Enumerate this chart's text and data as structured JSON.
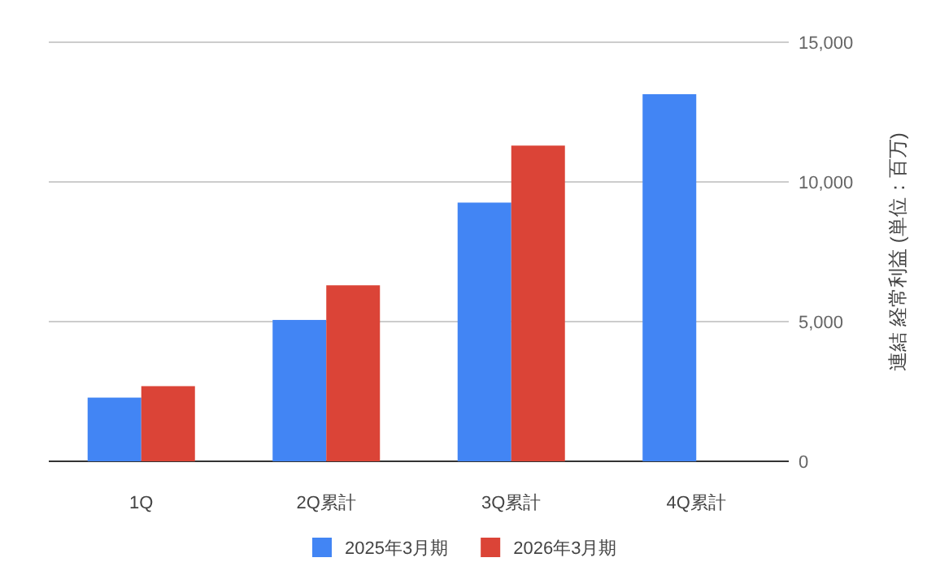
{
  "chart_data": {
    "type": "bar",
    "categories": [
      "1Q",
      "2Q累計",
      "3Q累計",
      "4Q累計"
    ],
    "series": [
      {
        "name": "2025年3月期",
        "color": "#4285f4",
        "values": [
          2280,
          5060,
          9260,
          13140
        ]
      },
      {
        "name": "2026年3月期",
        "color": "#db4437",
        "values": [
          2690,
          6300,
          11300,
          null
        ]
      }
    ],
    "ylabel": "連結 経常利益 (単位：百万)",
    "ylim": [
      0,
      15000
    ],
    "yticks": [
      0,
      {
        "value": 5000,
        "label": "5,000"
      },
      {
        "value": 10000,
        "label": "10,000"
      },
      {
        "value": 15000,
        "label": "15,000"
      }
    ],
    "grid": "y",
    "legend": "bottom"
  }
}
